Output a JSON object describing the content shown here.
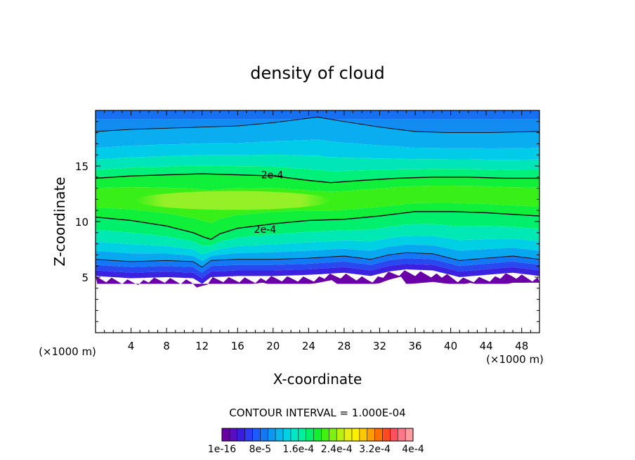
{
  "chart_data": {
    "type": "contour",
    "title": "density of cloud",
    "xlabel": "X-coordinate",
    "ylabel": "Z-coordinate",
    "x_unit_label": "(×1000 m)",
    "y_unit_label": "(×1000 m)",
    "xlim": [
      0,
      50
    ],
    "ylim": [
      0,
      20
    ],
    "x_ticks": [
      4,
      8,
      12,
      16,
      20,
      24,
      28,
      32,
      36,
      40,
      44,
      48
    ],
    "y_ticks": [
      5,
      10,
      15
    ],
    "contour_interval_text": "CONTOUR INTERVAL = 1.000E-04",
    "contour_lines": [
      {
        "level": "1e-4",
        "label": "",
        "points": [
          [
            0,
            18.1
          ],
          [
            4,
            18.3
          ],
          [
            8,
            18.4
          ],
          [
            12,
            18.5
          ],
          [
            16,
            18.6
          ],
          [
            20,
            18.9
          ],
          [
            24,
            19.3
          ],
          [
            25,
            19.4
          ],
          [
            28,
            19.0
          ],
          [
            32,
            18.5
          ],
          [
            36,
            18.1
          ],
          [
            40,
            18.0
          ],
          [
            44,
            18.0
          ],
          [
            50,
            18.1
          ]
        ]
      },
      {
        "level": "2e-4",
        "label": "2e-4",
        "label_at": [
          18,
          14.2
        ],
        "points": [
          [
            0,
            13.9
          ],
          [
            4,
            14.1
          ],
          [
            8,
            14.2
          ],
          [
            12,
            14.3
          ],
          [
            16,
            14.2
          ],
          [
            20,
            14.1
          ],
          [
            24,
            13.7
          ],
          [
            26.5,
            13.5
          ],
          [
            30,
            13.7
          ],
          [
            34,
            13.9
          ],
          [
            38,
            14.0
          ],
          [
            42,
            14.0
          ],
          [
            46,
            13.9
          ],
          [
            50,
            13.9
          ]
        ]
      },
      {
        "level": "2e-4",
        "label": "2e-4",
        "label_at": [
          17.2,
          9.3
        ],
        "points": [
          [
            0,
            10.4
          ],
          [
            4,
            10.1
          ],
          [
            8,
            9.6
          ],
          [
            11,
            9.0
          ],
          [
            12.2,
            8.6
          ],
          [
            13,
            8.4
          ],
          [
            14,
            8.9
          ],
          [
            16,
            9.4
          ],
          [
            20,
            9.8
          ],
          [
            24,
            10.1
          ],
          [
            28,
            10.2
          ],
          [
            32,
            10.5
          ],
          [
            36,
            10.9
          ],
          [
            40,
            10.9
          ],
          [
            44,
            10.8
          ],
          [
            50,
            10.5
          ]
        ]
      },
      {
        "level": "1e-4",
        "label": "",
        "points": [
          [
            0,
            6.6
          ],
          [
            4,
            6.4
          ],
          [
            8,
            6.5
          ],
          [
            11,
            6.4
          ],
          [
            12,
            5.9
          ],
          [
            13,
            6.5
          ],
          [
            16,
            6.6
          ],
          [
            20,
            6.6
          ],
          [
            24,
            6.7
          ],
          [
            28,
            6.9
          ],
          [
            31,
            6.6
          ],
          [
            33,
            7.0
          ],
          [
            35,
            7.2
          ],
          [
            38,
            7.1
          ],
          [
            41,
            6.5
          ],
          [
            44,
            6.7
          ],
          [
            47,
            6.9
          ],
          [
            50,
            6.6
          ]
        ]
      }
    ],
    "colorbar": {
      "colors": [
        "#6a00a8",
        "#5a0cc0",
        "#3a1ee0",
        "#2c3cf0",
        "#1c5cff",
        "#1478f4",
        "#0c98f0",
        "#06b8ee",
        "#00d2e6",
        "#00e8c6",
        "#00f0a0",
        "#00f06a",
        "#10f030",
        "#40f010",
        "#80f010",
        "#b8f010",
        "#e8f010",
        "#fff000",
        "#ffc800",
        "#ff9c00",
        "#ff7000",
        "#ff4a20",
        "#ff5060",
        "#ff7888",
        "#ff9ca0"
      ],
      "tick_labels": [
        "1e-16",
        "8e-5",
        "1.6e-4",
        "2.4e-4",
        "3.2e-4",
        "4e-4"
      ]
    }
  }
}
